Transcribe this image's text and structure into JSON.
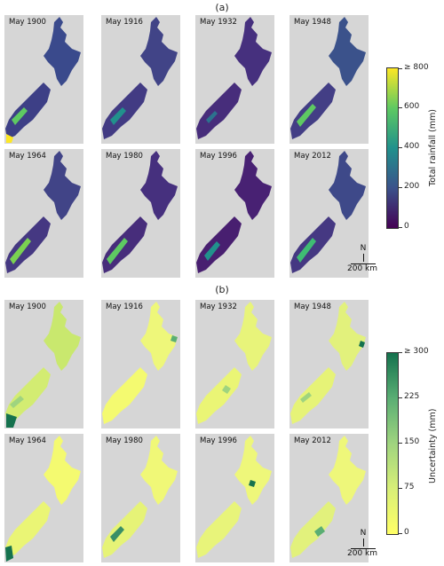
{
  "panels": [
    {
      "label": "(a)",
      "tiles": [
        "May 1900",
        "May 1916",
        "May 1932",
        "May 1948",
        "May 1964",
        "May 1980",
        "May 1996",
        "May 2012"
      ],
      "colorbar": {
        "title": "Total rainfall (mm)",
        "ticks": [
          "0",
          "200",
          "400",
          "600",
          "≥ 800"
        ],
        "colormap": "viridis",
        "colors": [
          "#440154",
          "#3b528b",
          "#21918c",
          "#5ec962",
          "#fde725"
        ]
      },
      "north_label": "N",
      "scale_label": "200 km"
    },
    {
      "label": "(b)",
      "tiles": [
        "May 1900",
        "May 1916",
        "May 1932",
        "May 1948",
        "May 1964",
        "May 1980",
        "May 1996",
        "May 2012"
      ],
      "colorbar": {
        "title": "Uncertainty (mm)",
        "ticks": [
          "0",
          "75",
          "150",
          "225",
          "≥ 300"
        ],
        "colormap": "yellow-green",
        "colors": [
          "#ffff66",
          "#d8ef78",
          "#9fd47f",
          "#5aae74",
          "#15724e"
        ]
      },
      "north_label": "N",
      "scale_label": "200 km"
    }
  ],
  "background_color": "#d6d6d6"
}
